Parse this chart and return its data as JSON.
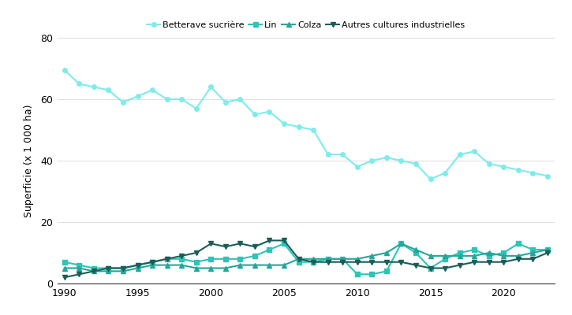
{
  "ylabel": "Superficie (x 1 000 ha)",
  "xlim": [
    1989.5,
    2023.5
  ],
  "ylim": [
    0,
    80
  ],
  "yticks": [
    0,
    20,
    40,
    60,
    80
  ],
  "xticks": [
    1990,
    1995,
    2000,
    2005,
    2010,
    2015,
    2020
  ],
  "bg_color": "#ffffff",
  "grid_color": "#e0e0e0",
  "series": {
    "Betterave sucrière": {
      "color": "#7eecea",
      "marker": "o",
      "markersize": 4,
      "linewidth": 1.5,
      "years": [
        1990,
        1991,
        1992,
        1993,
        1994,
        1995,
        1996,
        1997,
        1998,
        1999,
        2000,
        2001,
        2002,
        2003,
        2004,
        2005,
        2006,
        2007,
        2008,
        2009,
        2010,
        2011,
        2012,
        2013,
        2014,
        2015,
        2016,
        2017,
        2018,
        2019,
        2020,
        2021,
        2022,
        2023
      ],
      "values": [
        69.5,
        65,
        64,
        63,
        59,
        61,
        63,
        60,
        60,
        57,
        64,
        59,
        60,
        55,
        56,
        52,
        51,
        50,
        42,
        42,
        38,
        40,
        41,
        40,
        39,
        34,
        36,
        42,
        43,
        39,
        38,
        37,
        36,
        35
      ]
    },
    "Lin": {
      "color": "#2ec4b6",
      "marker": "s",
      "markersize": 4,
      "linewidth": 1.5,
      "years": [
        1990,
        1991,
        1992,
        1993,
        1994,
        1995,
        1996,
        1997,
        1998,
        1999,
        2000,
        2001,
        2002,
        2003,
        2004,
        2005,
        2006,
        2007,
        2008,
        2009,
        2010,
        2011,
        2012,
        2013,
        2014,
        2015,
        2016,
        2017,
        2018,
        2019,
        2020,
        2021,
        2022,
        2023
      ],
      "values": [
        7,
        6,
        5,
        5,
        5,
        6,
        7,
        8,
        8,
        7,
        8,
        8,
        8,
        9,
        11,
        13,
        7,
        7,
        8,
        8,
        3,
        3,
        4,
        13,
        10,
        5,
        8,
        10,
        11,
        9,
        10,
        13,
        11,
        11
      ]
    },
    "Colza": {
      "color": "#26a69a",
      "marker": "^",
      "markersize": 4,
      "linewidth": 1.5,
      "years": [
        1990,
        1991,
        1992,
        1993,
        1994,
        1995,
        1996,
        1997,
        1998,
        1999,
        2000,
        2001,
        2002,
        2003,
        2004,
        2005,
        2006,
        2007,
        2008,
        2009,
        2010,
        2011,
        2012,
        2013,
        2014,
        2015,
        2016,
        2017,
        2018,
        2019,
        2020,
        2021,
        2022,
        2023
      ],
      "values": [
        5,
        5,
        4,
        4,
        4,
        5,
        6,
        6,
        6,
        5,
        5,
        5,
        6,
        6,
        6,
        6,
        8,
        8,
        8,
        8,
        8,
        9,
        10,
        13,
        11,
        9,
        9,
        9,
        9,
        10,
        9,
        9,
        10,
        11
      ]
    },
    "Autres cultures industrielles": {
      "color": "#1a5e58",
      "marker": "v",
      "markersize": 4,
      "linewidth": 1.5,
      "years": [
        1990,
        1991,
        1992,
        1993,
        1994,
        1995,
        1996,
        1997,
        1998,
        1999,
        2000,
        2001,
        2002,
        2003,
        2004,
        2005,
        2006,
        2007,
        2008,
        2009,
        2010,
        2011,
        2012,
        2013,
        2014,
        2015,
        2016,
        2017,
        2018,
        2019,
        2020,
        2021,
        2022,
        2023
      ],
      "values": [
        2,
        3,
        4,
        5,
        5,
        6,
        7,
        8,
        9,
        10,
        13,
        12,
        13,
        12,
        14,
        14,
        8,
        7,
        7,
        7,
        7,
        7,
        7,
        7,
        6,
        5,
        5,
        6,
        7,
        7,
        7,
        8,
        8,
        10
      ]
    }
  }
}
